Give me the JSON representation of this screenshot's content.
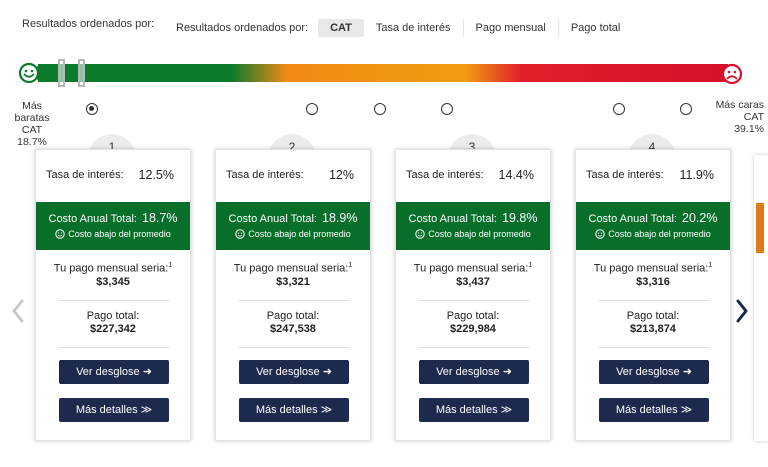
{
  "header": {
    "sort_label_left": "Resultados ordenados por:",
    "sort_label": "Resultados ordenados por:",
    "sort_options": [
      "CAT",
      "Tasa de interés",
      "Pago mensual",
      "Pago total"
    ],
    "active_sort": "CAT"
  },
  "range": {
    "left_line1": "Más",
    "left_line2": "baratas",
    "left_line3": "CAT",
    "left_value": "18.7%",
    "right_line1": "Más caras",
    "right_line2": "CAT",
    "right_value": "39.1%",
    "icons": {
      "left": "happy-face-icon",
      "right": "sad-face-icon"
    },
    "colors": {
      "low": "#0b7a2a",
      "mid": "#f39b12",
      "high": "#d7102a"
    }
  },
  "cards": [
    {
      "rank": "1",
      "rate_label": "Tasa de interés:",
      "rate": "12.5%",
      "cat_label": "Costo Anual Total:",
      "cat": "18.7%",
      "cat_note": "Costo abajo del promedio",
      "monthly_label": "Tu pago mensual seria:",
      "monthly_sup": "1",
      "monthly": "$3,345",
      "total_label": "Pago total:",
      "total": "$227,342",
      "btn_breakdown": "Ver desglose ➜",
      "btn_details": "Más detalles ≫"
    },
    {
      "rank": "2",
      "rate_label": "Tasa de interés:",
      "rate": "12%",
      "cat_label": "Costo Anual Total:",
      "cat": "18.9%",
      "cat_note": "Costo abajo del promedio",
      "monthly_label": "Tu pago mensual seria:",
      "monthly_sup": "1",
      "monthly": "$3,321",
      "total_label": "Pago total:",
      "total": "$247,538",
      "btn_breakdown": "Ver desglose ➜",
      "btn_details": "Más detalles ≫"
    },
    {
      "rank": "3",
      "rate_label": "Tasa de interés:",
      "rate": "14.4%",
      "cat_label": "Costo Anual Total:",
      "cat": "19.8%",
      "cat_note": "Costo abajo del promedio",
      "monthly_label": "Tu pago mensual seria:",
      "monthly_sup": "1",
      "monthly": "$3,437",
      "total_label": "Pago total:",
      "total": "$229,984",
      "btn_breakdown": "Ver desglose ➜",
      "btn_details": "Más detalles ≫"
    },
    {
      "rank": "4",
      "rate_label": "Tasa de interés:",
      "rate": "11.9%",
      "cat_label": "Costo Anual Total:",
      "cat": "20.2%",
      "cat_note": "Costo abajo del promedio",
      "monthly_label": "Tu pago mensual seria:",
      "monthly_sup": "1",
      "monthly": "$3,316",
      "total_label": "Pago total:",
      "total": "$213,874",
      "btn_breakdown": "Ver desglose ➜",
      "btn_details": "Más detalles ≫"
    }
  ],
  "nav": {
    "prev_icon": "chevron-left-icon",
    "next_icon": "chevron-right-icon"
  }
}
